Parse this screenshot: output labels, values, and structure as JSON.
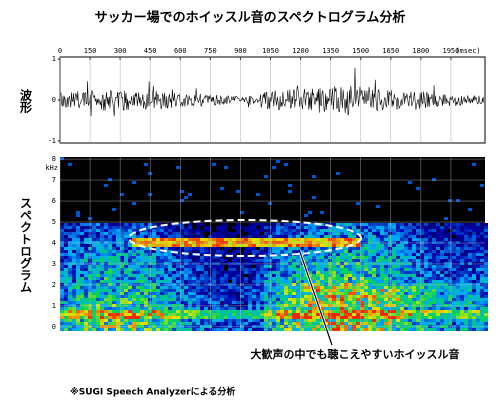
{
  "title": "サッカー場でのホイッスル音のスペクトログラム分析",
  "x_axis": {
    "ticks": [
      0,
      150,
      300,
      450,
      600,
      750,
      900,
      1050,
      1200,
      1350,
      1500,
      1650,
      1800,
      1950
    ],
    "unit": "(msec)",
    "xlim": [
      0,
      2120
    ]
  },
  "waveform": {
    "label": "波形",
    "yticks": [
      1,
      0,
      -1
    ],
    "ylim": [
      -1.05,
      1.05
    ]
  },
  "spectrogram": {
    "label": "スペクトログラム",
    "unit": "kHz",
    "yticks": [
      0,
      1,
      2,
      3,
      4,
      5,
      6,
      7,
      8
    ],
    "ylim": [
      -0.15,
      8.1
    ]
  },
  "annotation": "大歓声の中でも聴こえやすいホイッスル音",
  "footnote": "※SUGI Speech Analyzerによる分析"
}
